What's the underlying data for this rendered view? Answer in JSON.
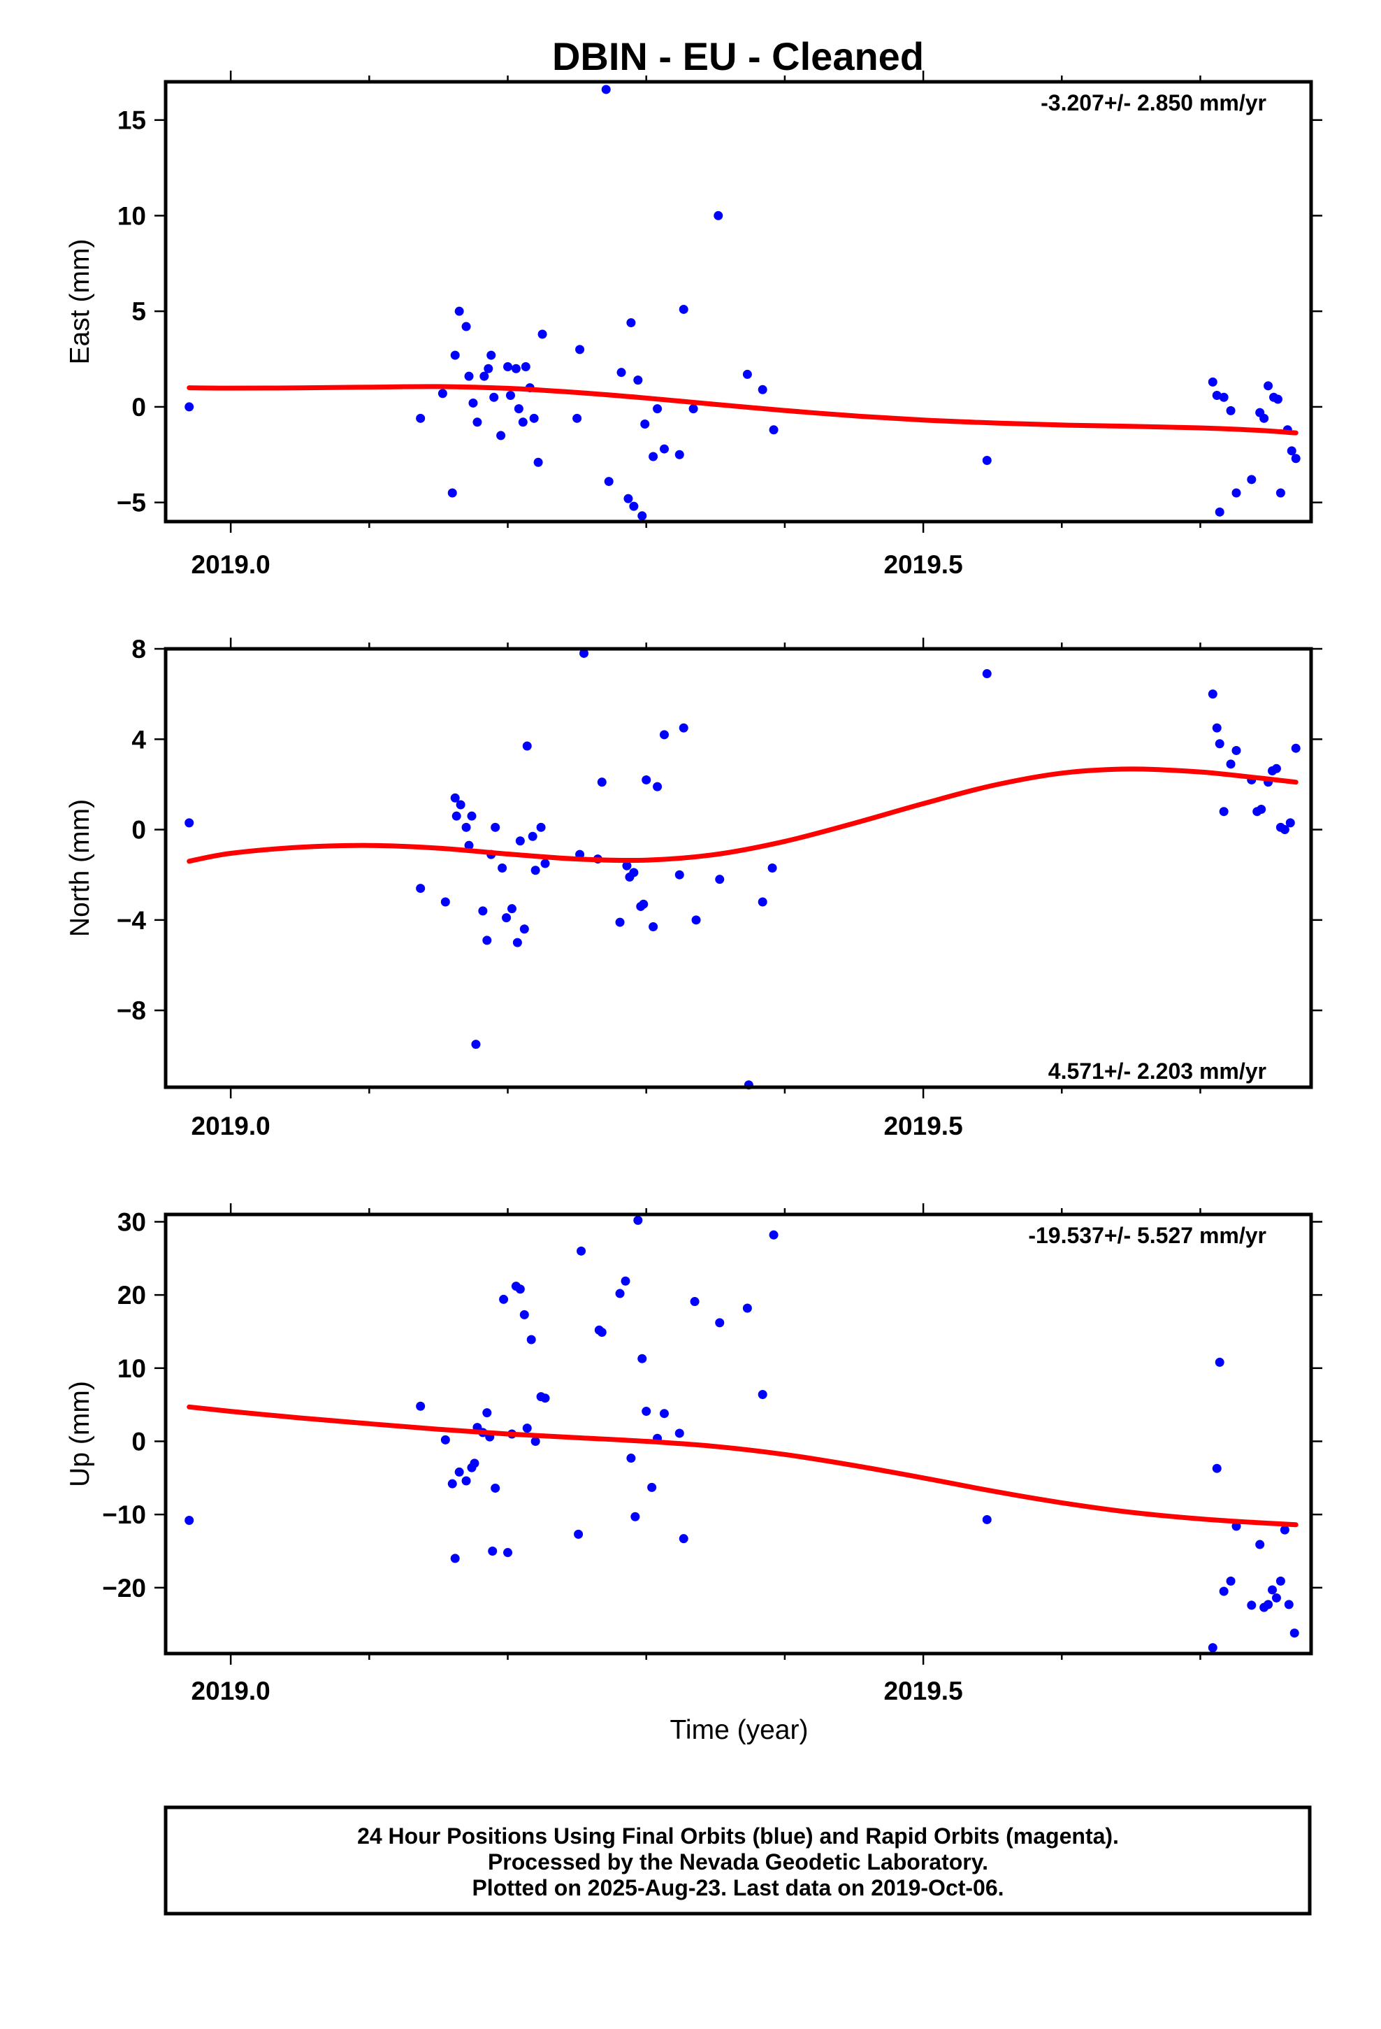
{
  "title": "DBIN  - EU - Cleaned",
  "footer": {
    "line1": "24 Hour Positions Using Final Orbits (blue) and Rapid Orbits (magenta).",
    "line2": "Processed by the Nevada Geodetic Laboratory.",
    "line3": "Plotted on 2025-Aug-23. Last data on 2019-Oct-06."
  },
  "colors": {
    "points": "#0000ff",
    "fit": "#ff0000",
    "axes": "#000000"
  },
  "chart_data": [
    {
      "type": "scatter",
      "ylabel": "East (mm)",
      "xlabel": "",
      "rate": "-3.207+/- 2.850 mm/yr",
      "rate_position": "top-right",
      "xlim": [
        2018.953,
        2019.78
      ],
      "ylim": [
        -6.0,
        17.0
      ],
      "xticks": [
        2019.0,
        2019.5
      ],
      "xtick_labels": [
        "2019.0",
        "2019.5"
      ],
      "yticks": [
        15,
        10,
        5,
        0,
        -5
      ],
      "ytick_labels": [
        "15",
        "10",
        "5",
        "0",
        "−5"
      ],
      "points": [
        [
          2018.97,
          0.0
        ],
        [
          2019.137,
          -0.6
        ],
        [
          2019.153,
          0.7
        ],
        [
          2019.16,
          -4.5
        ],
        [
          2019.162,
          2.7
        ],
        [
          2019.165,
          5.0
        ],
        [
          2019.17,
          4.2
        ],
        [
          2019.172,
          1.6
        ],
        [
          2019.175,
          0.2
        ],
        [
          2019.178,
          -0.8
        ],
        [
          2019.183,
          1.6
        ],
        [
          2019.186,
          2.0
        ],
        [
          2019.188,
          2.7
        ],
        [
          2019.19,
          0.5
        ],
        [
          2019.195,
          -1.5
        ],
        [
          2019.2,
          2.1
        ],
        [
          2019.202,
          0.6
        ],
        [
          2019.206,
          2.0
        ],
        [
          2019.208,
          -0.1
        ],
        [
          2019.211,
          -0.8
        ],
        [
          2019.213,
          2.1
        ],
        [
          2019.216,
          1.0
        ],
        [
          2019.219,
          -0.6
        ],
        [
          2019.222,
          -2.9
        ],
        [
          2019.225,
          3.8
        ],
        [
          2019.25,
          -0.6
        ],
        [
          2019.252,
          3.0
        ],
        [
          2019.271,
          16.6
        ],
        [
          2019.273,
          -3.9
        ],
        [
          2019.282,
          1.8
        ],
        [
          2019.287,
          -4.8
        ],
        [
          2019.289,
          4.4
        ],
        [
          2019.291,
          -5.2
        ],
        [
          2019.294,
          1.4
        ],
        [
          2019.297,
          -5.7
        ],
        [
          2019.299,
          -0.9
        ],
        [
          2019.305,
          -2.6
        ],
        [
          2019.308,
          -0.1
        ],
        [
          2019.313,
          -2.2
        ],
        [
          2019.324,
          -2.5
        ],
        [
          2019.327,
          5.1
        ],
        [
          2019.334,
          -0.1
        ],
        [
          2019.352,
          10.0
        ],
        [
          2019.373,
          1.7
        ],
        [
          2019.384,
          0.9
        ],
        [
          2019.392,
          -1.2
        ],
        [
          2019.546,
          -2.8
        ],
        [
          2019.709,
          1.3
        ],
        [
          2019.712,
          0.6
        ],
        [
          2019.714,
          -5.5
        ],
        [
          2019.717,
          0.5
        ],
        [
          2019.722,
          -0.2
        ],
        [
          2019.726,
          -4.5
        ],
        [
          2019.737,
          -3.8
        ],
        [
          2019.743,
          -0.3
        ],
        [
          2019.746,
          -0.6
        ],
        [
          2019.749,
          1.1
        ],
        [
          2019.753,
          0.5
        ],
        [
          2019.756,
          0.4
        ],
        [
          2019.758,
          -4.5
        ],
        [
          2019.763,
          -1.2
        ],
        [
          2019.766,
          -2.3
        ],
        [
          2019.769,
          -2.7
        ]
      ],
      "fit": [
        [
          2018.97,
          1.0
        ],
        [
          2019.0,
          0.98
        ],
        [
          2019.05,
          0.99
        ],
        [
          2019.1,
          1.03
        ],
        [
          2019.15,
          1.06
        ],
        [
          2019.2,
          0.97
        ],
        [
          2019.25,
          0.75
        ],
        [
          2019.3,
          0.46
        ],
        [
          2019.35,
          0.13
        ],
        [
          2019.4,
          -0.19
        ],
        [
          2019.45,
          -0.47
        ],
        [
          2019.5,
          -0.69
        ],
        [
          2019.55,
          -0.84
        ],
        [
          2019.6,
          -0.95
        ],
        [
          2019.65,
          -1.02
        ],
        [
          2019.7,
          -1.1
        ],
        [
          2019.74,
          -1.22
        ],
        [
          2019.769,
          -1.36
        ]
      ]
    },
    {
      "type": "scatter",
      "ylabel": "North (mm)",
      "xlabel": "",
      "rate": "4.571+/- 2.203 mm/yr",
      "rate_position": "bottom-right",
      "xlim": [
        2018.953,
        2019.78
      ],
      "ylim": [
        -11.4,
        8.0
      ],
      "xticks": [
        2019.0,
        2019.5
      ],
      "xtick_labels": [
        "2019.0",
        "2019.5"
      ],
      "yticks": [
        8,
        4,
        0,
        -4,
        -8
      ],
      "ytick_labels": [
        "8",
        "4",
        "0",
        "−4",
        "−8"
      ],
      "points": [
        [
          2018.97,
          0.3
        ],
        [
          2019.137,
          -2.6
        ],
        [
          2019.155,
          -3.2
        ],
        [
          2019.162,
          1.4
        ],
        [
          2019.163,
          0.6
        ],
        [
          2019.166,
          1.1
        ],
        [
          2019.17,
          0.1
        ],
        [
          2019.172,
          -0.7
        ],
        [
          2019.174,
          0.6
        ],
        [
          2019.177,
          -9.5
        ],
        [
          2019.182,
          -3.6
        ],
        [
          2019.185,
          -4.9
        ],
        [
          2019.188,
          -1.1
        ],
        [
          2019.191,
          0.1
        ],
        [
          2019.196,
          -1.7
        ],
        [
          2019.199,
          -3.9
        ],
        [
          2019.203,
          -3.5
        ],
        [
          2019.207,
          -5.0
        ],
        [
          2019.209,
          -0.5
        ],
        [
          2019.212,
          -4.4
        ],
        [
          2019.214,
          3.7
        ],
        [
          2019.218,
          -0.3
        ],
        [
          2019.22,
          -1.8
        ],
        [
          2019.224,
          0.1
        ],
        [
          2019.227,
          -1.5
        ],
        [
          2019.255,
          7.8
        ],
        [
          2019.252,
          -1.1
        ],
        [
          2019.265,
          -1.3
        ],
        [
          2019.268,
          2.1
        ],
        [
          2019.281,
          -4.1
        ],
        [
          2019.286,
          -1.6
        ],
        [
          2019.288,
          -2.1
        ],
        [
          2019.291,
          -1.9
        ],
        [
          2019.296,
          -3.4
        ],
        [
          2019.298,
          -3.3
        ],
        [
          2019.3,
          2.2
        ],
        [
          2019.305,
          -4.3
        ],
        [
          2019.308,
          1.9
        ],
        [
          2019.313,
          4.2
        ],
        [
          2019.324,
          -2.0
        ],
        [
          2019.327,
          4.5
        ],
        [
          2019.336,
          -4.0
        ],
        [
          2019.353,
          -2.2
        ],
        [
          2019.374,
          -11.3
        ],
        [
          2019.384,
          -3.2
        ],
        [
          2019.391,
          -1.7
        ],
        [
          2019.546,
          6.9
        ],
        [
          2019.709,
          6.0
        ],
        [
          2019.712,
          4.5
        ],
        [
          2019.714,
          3.8
        ],
        [
          2019.717,
          0.8
        ],
        [
          2019.722,
          2.9
        ],
        [
          2019.726,
          3.5
        ],
        [
          2019.737,
          2.2
        ],
        [
          2019.741,
          0.8
        ],
        [
          2019.744,
          0.9
        ],
        [
          2019.749,
          2.1
        ],
        [
          2019.752,
          2.6
        ],
        [
          2019.755,
          2.7
        ],
        [
          2019.758,
          0.1
        ],
        [
          2019.761,
          0.0
        ],
        [
          2019.765,
          0.3
        ],
        [
          2019.769,
          3.6
        ]
      ],
      "fit": [
        [
          2018.97,
          -1.4
        ],
        [
          2019.0,
          -1.05
        ],
        [
          2019.05,
          -0.78
        ],
        [
          2019.1,
          -0.7
        ],
        [
          2019.15,
          -0.82
        ],
        [
          2019.2,
          -1.08
        ],
        [
          2019.25,
          -1.3
        ],
        [
          2019.3,
          -1.35
        ],
        [
          2019.35,
          -1.1
        ],
        [
          2019.4,
          -0.52
        ],
        [
          2019.45,
          0.28
        ],
        [
          2019.5,
          1.15
        ],
        [
          2019.55,
          1.95
        ],
        [
          2019.6,
          2.5
        ],
        [
          2019.65,
          2.68
        ],
        [
          2019.7,
          2.55
        ],
        [
          2019.74,
          2.3
        ],
        [
          2019.769,
          2.1
        ]
      ]
    },
    {
      "type": "scatter",
      "ylabel": "Up (mm)",
      "xlabel": "Time (year)",
      "rate": "-19.537+/- 5.527 mm/yr",
      "rate_position": "top-right",
      "xlim": [
        2018.953,
        2019.78
      ],
      "ylim": [
        -29.0,
        31.0
      ],
      "xticks": [
        2019.0,
        2019.5
      ],
      "xtick_labels": [
        "2019.0",
        "2019.5"
      ],
      "yticks": [
        30,
        20,
        10,
        0,
        -10,
        -20
      ],
      "ytick_labels": [
        "30",
        "20",
        "10",
        "0",
        "−10",
        "−20"
      ],
      "points": [
        [
          2018.97,
          -10.8
        ],
        [
          2019.137,
          4.8
        ],
        [
          2019.155,
          0.2
        ],
        [
          2019.16,
          -5.8
        ],
        [
          2019.162,
          -16.0
        ],
        [
          2019.165,
          -4.2
        ],
        [
          2019.17,
          -5.4
        ],
        [
          2019.174,
          -3.6
        ],
        [
          2019.176,
          -3.0
        ],
        [
          2019.178,
          1.9
        ],
        [
          2019.182,
          1.2
        ],
        [
          2019.185,
          3.9
        ],
        [
          2019.187,
          0.6
        ],
        [
          2019.189,
          -15.0
        ],
        [
          2019.191,
          -6.4
        ],
        [
          2019.197,
          19.4
        ],
        [
          2019.2,
          -15.2
        ],
        [
          2019.203,
          1.0
        ],
        [
          2019.206,
          21.2
        ],
        [
          2019.209,
          20.8
        ],
        [
          2019.212,
          17.3
        ],
        [
          2019.214,
          1.8
        ],
        [
          2019.217,
          13.9
        ],
        [
          2019.22,
          0.0
        ],
        [
          2019.224,
          6.1
        ],
        [
          2019.227,
          5.9
        ],
        [
          2019.251,
          -12.7
        ],
        [
          2019.253,
          26.0
        ],
        [
          2019.266,
          15.2
        ],
        [
          2019.268,
          14.9
        ],
        [
          2019.281,
          20.2
        ],
        [
          2019.285,
          21.9
        ],
        [
          2019.289,
          -2.3
        ],
        [
          2019.292,
          -10.3
        ],
        [
          2019.294,
          30.2
        ],
        [
          2019.297,
          11.3
        ],
        [
          2019.3,
          4.1
        ],
        [
          2019.304,
          -6.3
        ],
        [
          2019.308,
          0.4
        ],
        [
          2019.313,
          3.8
        ],
        [
          2019.324,
          1.1
        ],
        [
          2019.327,
          -13.3
        ],
        [
          2019.335,
          19.1
        ],
        [
          2019.353,
          16.2
        ],
        [
          2019.373,
          18.2
        ],
        [
          2019.384,
          6.4
        ],
        [
          2019.392,
          28.2
        ],
        [
          2019.546,
          -10.7
        ],
        [
          2019.709,
          -28.2
        ],
        [
          2019.712,
          -3.7
        ],
        [
          2019.714,
          10.8
        ],
        [
          2019.717,
          -20.5
        ],
        [
          2019.722,
          -19.1
        ],
        [
          2019.726,
          -11.6
        ],
        [
          2019.737,
          -22.4
        ],
        [
          2019.743,
          -14.1
        ],
        [
          2019.746,
          -22.7
        ],
        [
          2019.749,
          -22.3
        ],
        [
          2019.752,
          -20.3
        ],
        [
          2019.755,
          -21.4
        ],
        [
          2019.758,
          -19.1
        ],
        [
          2019.761,
          -12.1
        ],
        [
          2019.764,
          -22.3
        ],
        [
          2019.768,
          -26.2
        ]
      ],
      "fit": [
        [
          2018.97,
          4.7
        ],
        [
          2019.0,
          4.1
        ],
        [
          2019.05,
          3.2
        ],
        [
          2019.1,
          2.4
        ],
        [
          2019.15,
          1.65
        ],
        [
          2019.2,
          1.0
        ],
        [
          2019.25,
          0.5
        ],
        [
          2019.3,
          0.0
        ],
        [
          2019.35,
          -0.7
        ],
        [
          2019.4,
          -1.8
        ],
        [
          2019.45,
          -3.3
        ],
        [
          2019.5,
          -5.0
        ],
        [
          2019.55,
          -6.8
        ],
        [
          2019.6,
          -8.4
        ],
        [
          2019.65,
          -9.7
        ],
        [
          2019.7,
          -10.6
        ],
        [
          2019.74,
          -11.1
        ],
        [
          2019.769,
          -11.4
        ]
      ]
    }
  ]
}
